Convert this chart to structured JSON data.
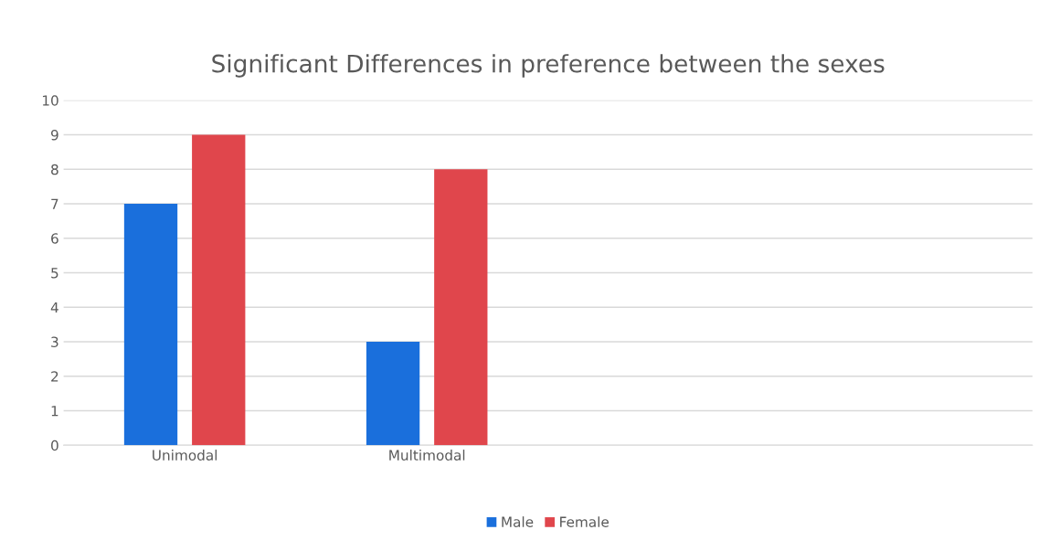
{
  "chart_data": {
    "type": "bar",
    "title": "Significant Differences in preference between the sexes",
    "categories": [
      "Unimodal",
      "Multimodal",
      null,
      null
    ],
    "series": [
      {
        "name": "Male",
        "color": "#1a6fdc",
        "values": [
          7,
          3,
          null,
          null
        ]
      },
      {
        "name": "Female",
        "color": "#e0464c",
        "values": [
          9,
          8,
          null,
          null
        ]
      }
    ],
    "ylim": [
      0,
      10
    ],
    "yticks": [
      0,
      1,
      2,
      3,
      4,
      5,
      6,
      7,
      8,
      9,
      10
    ],
    "grid": "y",
    "legend": "bottom"
  }
}
